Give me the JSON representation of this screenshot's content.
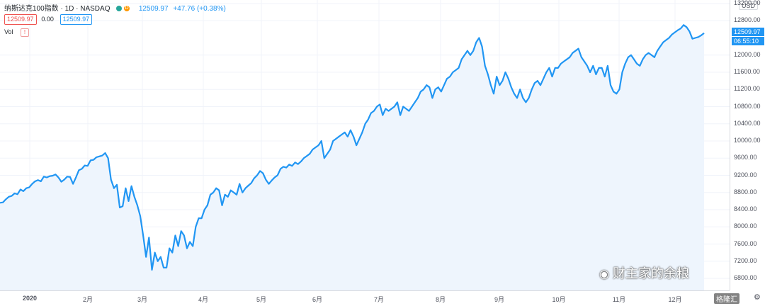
{
  "header": {
    "symbol_title": "纳斯达克100指数 · 1D · NASDAQ",
    "last_value": "12509.97",
    "change": "+47.76 (+0.38%)",
    "bid": "12509.97",
    "spread": "0.00",
    "ask": "12509.97",
    "vol_label": "Vol"
  },
  "price_axis": {
    "currency": "USD",
    "ticks": [
      "13200.00",
      "12800.00",
      "12000.00",
      "11600.00",
      "11200.00",
      "10800.00",
      "10400.00",
      "10000.00",
      "9600.00",
      "9200.00",
      "8800.00",
      "8400.00",
      "8000.00",
      "7600.00",
      "7200.00",
      "6800.00"
    ],
    "last_price_tag": "12509.97",
    "countdown": "06:55:10"
  },
  "time_axis": {
    "labels": [
      "2020",
      "2月",
      "3月",
      "4月",
      "5月",
      "6月",
      "7月",
      "8月",
      "9月",
      "10月",
      "11月",
      "12月"
    ]
  },
  "watermark": "财主家的余粮",
  "corner_logo": "格隆汇",
  "colors": {
    "line": "#2196f3",
    "fill": "#eef5fd",
    "bid": "#ef5350",
    "ask": "#2196f3",
    "up": "#26a69a"
  },
  "chart_data": {
    "type": "line",
    "title": "纳斯达克100指数 · 1D · NASDAQ",
    "x_labels": [
      "2020",
      "2月",
      "3月",
      "4月",
      "5月",
      "6月",
      "7月",
      "8月",
      "9月",
      "10月",
      "11月",
      "12月"
    ],
    "ylim": [
      6800,
      13200
    ],
    "y_ticks": [
      6800,
      7200,
      7600,
      8000,
      8400,
      8800,
      9200,
      9600,
      10000,
      10400,
      10800,
      11200,
      11600,
      12000,
      12800,
      13200
    ],
    "grid": true,
    "series": [
      {
        "values": [
          8560,
          8570,
          8640,
          8700,
          8720,
          8780,
          8760,
          8870,
          8830,
          8900,
          8920,
          9000,
          9060,
          9090,
          9060,
          9170,
          9150,
          9180,
          9190,
          9220,
          9150,
          9050,
          9100,
          9170,
          9160,
          9000,
          9150,
          9320,
          9350,
          9430,
          9420,
          9550,
          9560,
          9620,
          9640,
          9660,
          9718,
          9600,
          9100,
          8900,
          8980,
          8450,
          8480,
          8900,
          8600,
          8950,
          8700,
          8500,
          8250,
          7800,
          7300,
          7750,
          7000,
          7400,
          7200,
          7300,
          7050,
          7050,
          7500,
          7400,
          7800,
          7550,
          7900,
          7800,
          7500,
          7650,
          7550,
          8000,
          8200,
          8200,
          8400,
          8500,
          8750,
          8800,
          8900,
          8850,
          8500,
          8750,
          8700,
          8850,
          8800,
          8750,
          9000,
          8800,
          8900,
          8960,
          9020,
          9130,
          9200,
          9300,
          9250,
          9100,
          9000,
          9080,
          9150,
          9200,
          9350,
          9400,
          9380,
          9450,
          9420,
          9500,
          9460,
          9520,
          9600,
          9650,
          9700,
          9800,
          9850,
          9900,
          10000,
          9600,
          9700,
          9800,
          10000,
          10050,
          10100,
          10150,
          10200,
          10100,
          10250,
          10100,
          9900,
          10050,
          10200,
          10400,
          10500,
          10650,
          10700,
          10800,
          10850,
          10600,
          10750,
          10700,
          10750,
          10800,
          10900,
          10600,
          10800,
          10750,
          10700,
          10800,
          10900,
          11000,
          11150,
          11200,
          11300,
          11250,
          11000,
          11200,
          11250,
          11150,
          11300,
          11450,
          11500,
          11600,
          11650,
          11700,
          11900,
          12000,
          12100,
          12000,
          12100,
          12300,
          12400,
          12200,
          11750,
          11550,
          11300,
          11100,
          11500,
          11300,
          11400,
          11600,
          11450,
          11250,
          11100,
          11000,
          11200,
          11000,
          10900,
          11000,
          11200,
          11350,
          11400,
          11300,
          11450,
          11600,
          11700,
          11500,
          11700,
          11700,
          11800,
          11850,
          11900,
          11950,
          12050,
          12100,
          12150,
          11950,
          11850,
          11750,
          11600,
          11750,
          11550,
          11700,
          11700,
          11500,
          11750,
          11300,
          11150,
          11100,
          11200,
          11600,
          11800,
          11950,
          12000,
          11900,
          11800,
          11750,
          11900,
          12000,
          12050,
          12000,
          11950,
          12100,
          12200,
          12300,
          12350,
          12400,
          12480,
          12530,
          12580,
          12620,
          12700,
          12650,
          12550,
          12380,
          12400,
          12420,
          12460,
          12509.97
        ]
      }
    ]
  }
}
